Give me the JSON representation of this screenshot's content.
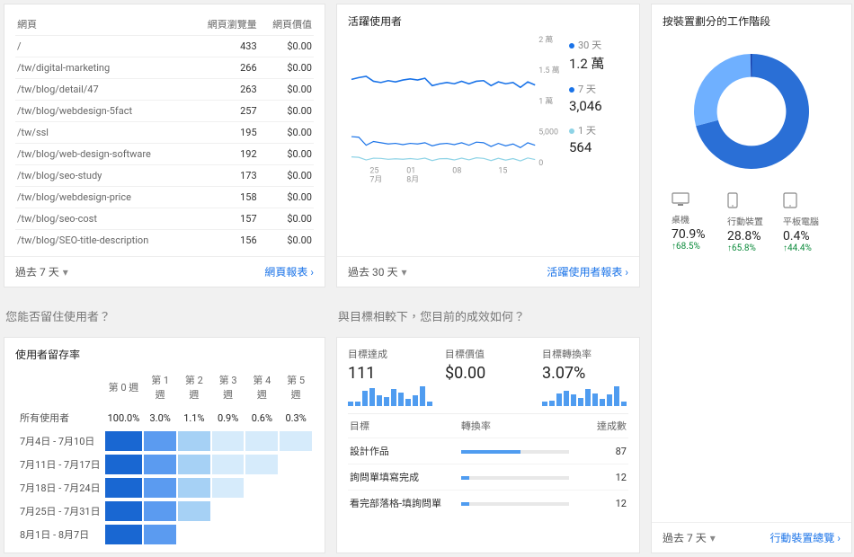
{
  "colors": {
    "blue30": "#1a73e8",
    "blue7": "#1a73e8",
    "blue1": "#8ed3e6",
    "donutDark": "#2a6fd6",
    "donutLight": "#6fb0ff",
    "donutPale": "#2e2eaa",
    "good": "#0a8a3a"
  },
  "pages": {
    "title_col1": "網頁",
    "title_col2": "網頁瀏覽量",
    "title_col3": "網頁價值",
    "rows": [
      {
        "path": "/",
        "views": "433",
        "value": "$0.00"
      },
      {
        "path": "/tw/digital-marketing",
        "views": "266",
        "value": "$0.00"
      },
      {
        "path": "/tw/blog/detail/47",
        "views": "263",
        "value": "$0.00"
      },
      {
        "path": "/tw/blog/webdesign-5fact",
        "views": "257",
        "value": "$0.00"
      },
      {
        "path": "/tw/ssl",
        "views": "195",
        "value": "$0.00"
      },
      {
        "path": "/tw/blog/web-design-software",
        "views": "192",
        "value": "$0.00"
      },
      {
        "path": "/tw/blog/seo-study",
        "views": "173",
        "value": "$0.00"
      },
      {
        "path": "/tw/blog/webdesign-price",
        "views": "158",
        "value": "$0.00"
      },
      {
        "path": "/tw/blog/seo-cost",
        "views": "157",
        "value": "$0.00"
      },
      {
        "path": "/tw/blog/SEO-title-description",
        "views": "156",
        "value": "$0.00"
      }
    ],
    "footer_range": "過去 7 天",
    "footer_link": "網頁報表"
  },
  "active_users": {
    "title": "活躍使用者",
    "y_ticks": [
      "2 萬",
      "1.5 萬",
      "1 萬",
      "5,000",
      "0"
    ],
    "y_vals": [
      20000,
      15000,
      10000,
      5000,
      0
    ],
    "x_ticks": [
      {
        "t": "25",
        "sub": "7月",
        "x": 0.1
      },
      {
        "t": "01",
        "sub": "8月",
        "x": 0.3
      },
      {
        "t": "08",
        "sub": "",
        "x": 0.55
      },
      {
        "t": "15",
        "sub": "",
        "x": 0.8
      }
    ],
    "series": {
      "d30": {
        "label": "30 天",
        "value": "1.2 萬",
        "color": "#1a73e8",
        "points": [
          13500,
          13800,
          14000,
          13200,
          13000,
          13300,
          13100,
          13400,
          13600,
          13400,
          13700,
          12500,
          12800,
          13000,
          12800,
          13200,
          12800,
          13200,
          13300,
          12500,
          13100,
          12800,
          13000,
          12200,
          13100,
          12600
        ]
      },
      "d7": {
        "label": "7 天",
        "value": "3,046",
        "color": "#1a73e8",
        "points": [
          4200,
          4100,
          2800,
          3400,
          3200,
          3000,
          3100,
          2900,
          3100,
          3000,
          3200,
          2700,
          3000,
          3100,
          2900,
          3200,
          2800,
          3300,
          3200,
          2600,
          3100,
          2700,
          3000,
          2400,
          3200,
          2800
        ]
      },
      "d1": {
        "label": "1 天",
        "value": "564",
        "color": "#8ed3e6",
        "points": [
          900,
          820,
          400,
          700,
          650,
          500,
          600,
          520,
          630,
          500,
          700,
          300,
          600,
          620,
          400,
          700,
          420,
          750,
          650,
          300,
          680,
          380,
          620,
          240,
          720,
          480
        ]
      }
    },
    "footer_range": "過去 30 天",
    "footer_link": "活躍使用者報表"
  },
  "device": {
    "title": "按裝置劃分的工作階段",
    "donut": [
      {
        "label": "桌機",
        "pct": 70.9,
        "color": "#2a6fd6"
      },
      {
        "label": "行動裝置",
        "pct": 28.8,
        "color": "#6fb0ff"
      },
      {
        "label": "平板電腦",
        "pct": 0.4,
        "color": "#1b3ea8"
      }
    ],
    "rows": [
      {
        "icon": "desktop",
        "label": "桌機",
        "pct": "70.9%",
        "delta": "↑68.5%"
      },
      {
        "icon": "mobile",
        "label": "行動裝置",
        "pct": "28.8%",
        "delta": "↑65.8%"
      },
      {
        "icon": "tablet",
        "label": "平板電腦",
        "pct": "0.4%",
        "delta": "↑44.4%"
      }
    ],
    "footer_range": "過去 7 天",
    "footer_link": "行動裝置總覽"
  },
  "q_left": "您能否留住使用者？",
  "q_right": "與目標相較下，您目前的成效如何？",
  "retention": {
    "title": "使用者留存率",
    "col_headers": [
      "第 0 週",
      "第 1 週",
      "第 2 週",
      "第 3 週",
      "第 4 週",
      "第 5 週"
    ],
    "all_label": "所有使用者",
    "all_values": [
      "100.0%",
      "3.0%",
      "1.1%",
      "0.9%",
      "0.6%",
      "0.3%"
    ],
    "rows": [
      {
        "label": "7月4日 - 7月10日",
        "cells": [
          1.0,
          0.45,
          0.2,
          0.1,
          0.07,
          0.03
        ]
      },
      {
        "label": "7月11日 - 7月17日",
        "cells": [
          1.0,
          0.45,
          0.12,
          0.07,
          0.04,
          null
        ]
      },
      {
        "label": "7月18日 - 7月24日",
        "cells": [
          1.0,
          0.45,
          0.2,
          0.06,
          null,
          null
        ]
      },
      {
        "label": "7月25日 - 7月31日",
        "cells": [
          1.0,
          0.45,
          0.15,
          null,
          null,
          null
        ]
      },
      {
        "label": "8月1日 - 8月7日",
        "cells": [
          1.0,
          0.45,
          null,
          null,
          null,
          null
        ]
      }
    ],
    "palette": {
      "full": "#1967d2",
      "mid": "#5b9bf0",
      "low": "#a6d1f5",
      "vlo": "#d6ebfb"
    }
  },
  "goals": {
    "blocks": [
      {
        "label": "目標達成",
        "value": "111",
        "spark": [
          3,
          3,
          10,
          12,
          7,
          6,
          11,
          9,
          5,
          7,
          13,
          3
        ]
      },
      {
        "label": "目標價值",
        "value": "$0.00",
        "spark": [
          0,
          0,
          0,
          0,
          0,
          0,
          0,
          0,
          0,
          0,
          0,
          0
        ]
      },
      {
        "label": "目標轉換率",
        "value": "3.07%",
        "spark": [
          3,
          4,
          9,
          11,
          8,
          6,
          12,
          9,
          5,
          8,
          14,
          3
        ]
      }
    ],
    "tbl_headers": [
      "目標",
      "轉換率",
      "達成數"
    ],
    "rows": [
      {
        "name": "設計作品",
        "rate": 0.55,
        "count": "87"
      },
      {
        "name": "詢問單填寫完成",
        "rate": 0.08,
        "count": "12"
      },
      {
        "name": "看完部落格-填詢問單",
        "rate": 0.08,
        "count": "12"
      }
    ]
  }
}
